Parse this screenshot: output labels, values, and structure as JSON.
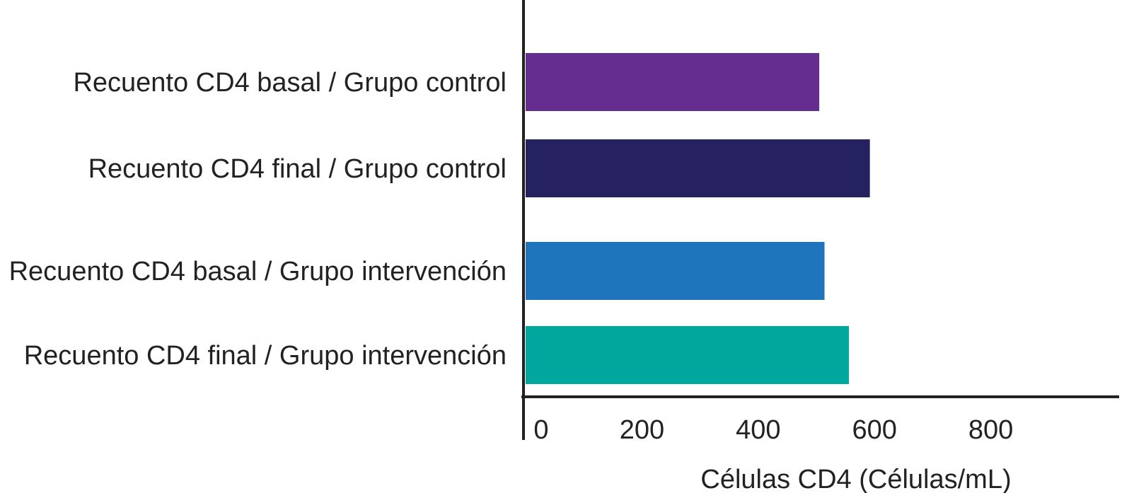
{
  "chart_data": {
    "type": "bar",
    "orientation": "horizontal",
    "title": "",
    "xlabel": "Células CD4 (Células/mL)",
    "ylabel": "",
    "categories": [
      "Recuento CD4 basal / Grupo control",
      "Recuento CD4 final / Grupo control",
      "Recuento CD4 basal / Grupo intervención",
      "Recuento CD4 final / Grupo intervención"
    ],
    "values": [
      505,
      592,
      514,
      556
    ],
    "colors": [
      "#652d90",
      "#262262",
      "#1f75bc",
      "#00a79d"
    ],
    "xlim": [
      0,
      800
    ],
    "xticks": [
      0,
      200,
      400,
      600,
      800
    ],
    "xtick_labels": [
      "0",
      "200",
      "400",
      "600",
      "800"
    ],
    "grid": false,
    "legend": "none"
  }
}
